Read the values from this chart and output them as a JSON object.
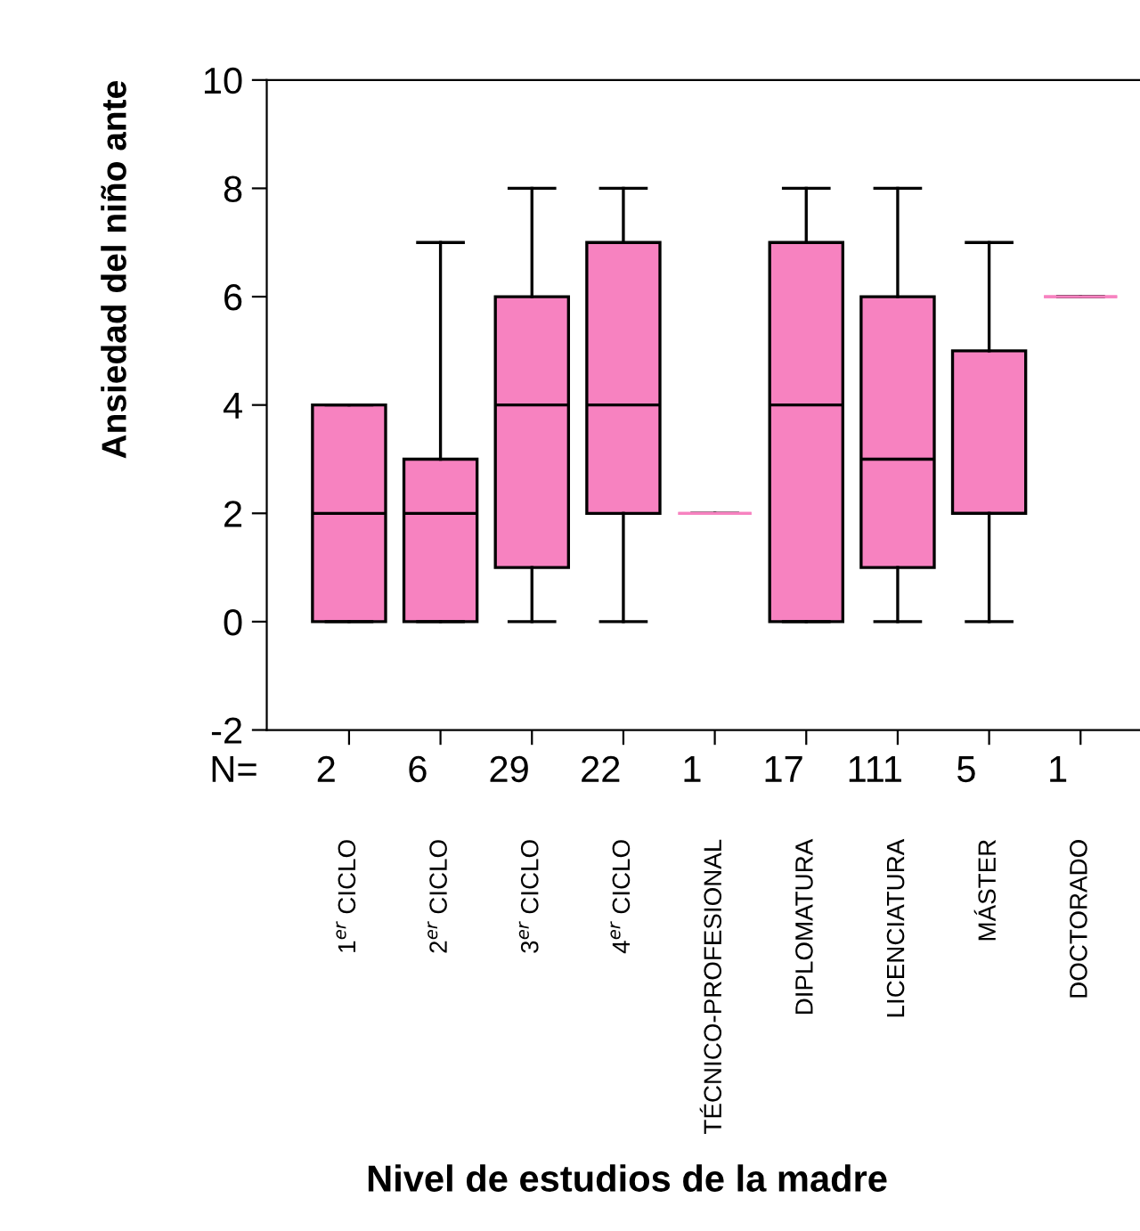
{
  "chart_data": {
    "type": "box",
    "ylabel": "Ansiedad del niño ante",
    "xlabel": "Nivel de estudios de la madre",
    "categories": [
      "1$^{er}$ CICLO",
      "2$^{er}$ CICLO",
      "3$^{er}$ CICLO",
      "4$^{er}$ CICLO",
      "TÉCNICO-PROFESIONAL",
      "DIPLOMATURA",
      "LICENCIATURA",
      "MÁSTER",
      "DOCTORADO"
    ],
    "boxes": [
      {
        "low": 0,
        "q1": 0,
        "median": 2,
        "q3": 4,
        "high": 4
      },
      {
        "low": 0,
        "q1": 0,
        "median": 2,
        "q3": 3,
        "high": 7
      },
      {
        "low": 0,
        "q1": 1,
        "median": 4,
        "q3": 6,
        "high": 8
      },
      {
        "low": 0,
        "q1": 2,
        "median": 4,
        "q3": 7,
        "high": 8
      },
      {
        "low": 2,
        "q1": 2,
        "median": 2,
        "q3": 2,
        "high": 2
      },
      {
        "low": 0,
        "q1": 0,
        "median": 4,
        "q3": 7,
        "high": 8
      },
      {
        "low": 0,
        "q1": 1,
        "median": 3,
        "q3": 6,
        "high": 8
      },
      {
        "low": 0,
        "q1": 2,
        "median": 2,
        "q3": 5,
        "high": 7
      },
      {
        "low": 6,
        "q1": 6,
        "median": 6,
        "q3": 6,
        "high": 6
      }
    ],
    "color": "#f782c0",
    "ylim": [
      -2,
      10
    ],
    "yticks": [
      -2,
      0,
      2,
      4,
      6,
      8,
      10
    ],
    "annotations": [
      "N=",
      "2",
      "6",
      "29",
      "22",
      "1",
      "17",
      "111",
      "5",
      "1"
    ],
    "grid": false
  }
}
